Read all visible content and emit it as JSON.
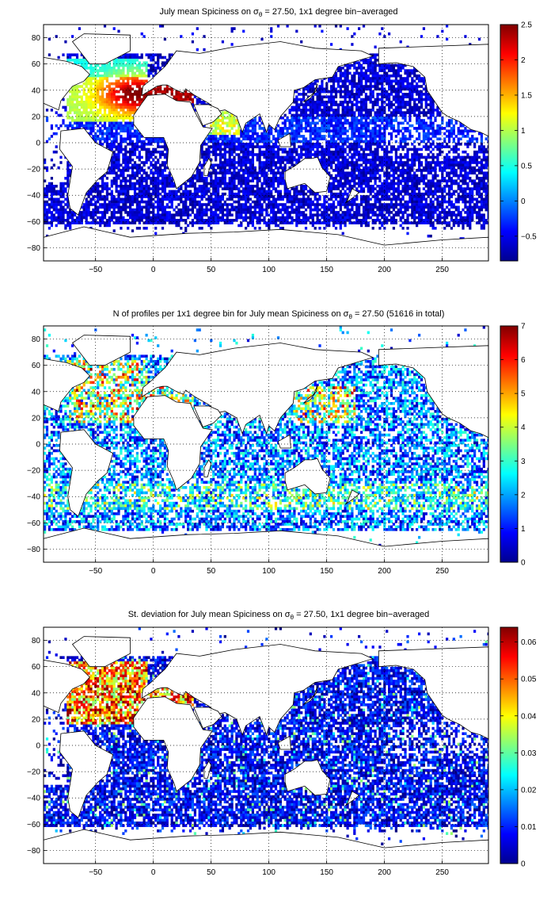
{
  "panels": [
    {
      "title_pre": "July mean Spiciness on σ",
      "title_sub": "θ",
      "title_post": " = 27.50, 1x1 degree bin−averaged",
      "colorbar": {
        "ticks": [
          "2.5",
          "2",
          "1.5",
          "1",
          "0.5",
          "0",
          "−0.5"
        ],
        "vmin": -0.85,
        "vmax": 2.5
      },
      "field": "spiciness"
    },
    {
      "title_pre": "N of profiles per 1x1 degree bin for July mean Spiciness on σ",
      "title_sub": "θ",
      "title_post": " = 27.50 (51616 in total)",
      "colorbar": {
        "ticks": [
          "7",
          "6",
          "5",
          "4",
          "3",
          "2",
          "1",
          "0"
        ],
        "vmin": 0,
        "vmax": 7
      },
      "field": "count"
    },
    {
      "title_pre": "St. deviation for July mean Spiciness on σ",
      "title_sub": "θ",
      "title_post": " = 27.50, 1x1 degree bin−averaged",
      "colorbar": {
        "ticks": [
          "0.06",
          "0.05",
          "0.04",
          "0.03",
          "0.02",
          "0.01",
          "0"
        ],
        "vmin": 0,
        "vmax": 0.064
      },
      "field": "stdev"
    }
  ],
  "map_axes": {
    "x_ticks": [
      "−50",
      "0",
      "50",
      "100",
      "150",
      "200",
      "250"
    ],
    "y_ticks": [
      "80",
      "60",
      "40",
      "20",
      "0",
      "−20",
      "−40",
      "−60",
      "−80"
    ],
    "xlim": [
      -95,
      290
    ],
    "ylim": [
      -90,
      90
    ],
    "grid": "dotted",
    "colormap": "jet"
  }
}
